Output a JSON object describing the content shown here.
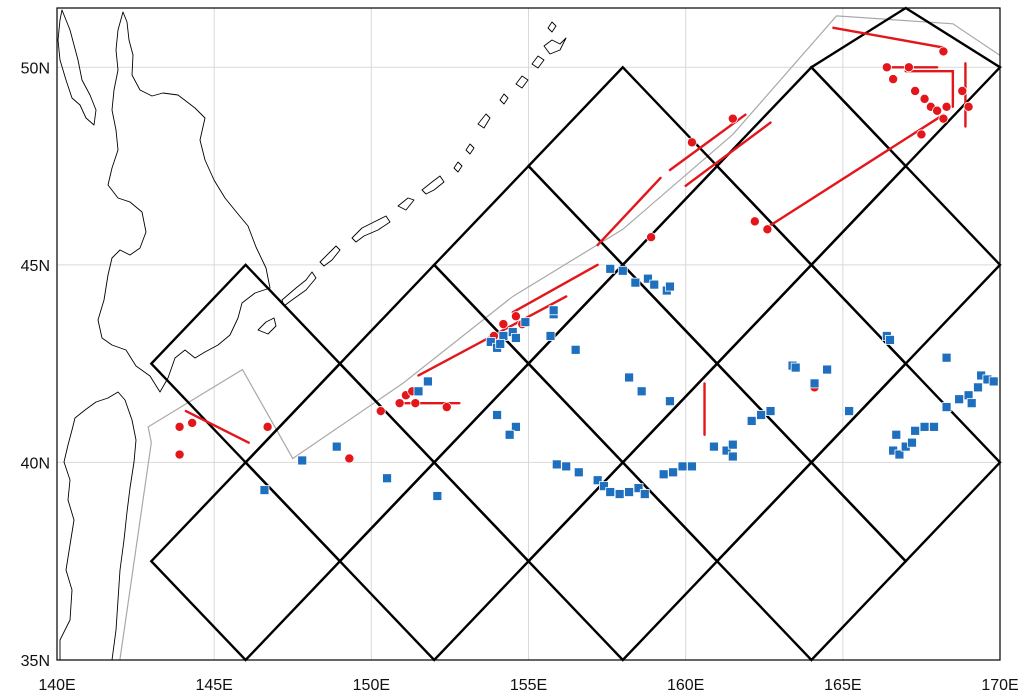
{
  "map": {
    "lon_range": [
      140,
      170
    ],
    "lat_range": [
      35,
      51.5
    ],
    "x_ticks": [
      {
        "value": 140,
        "label": "140E"
      },
      {
        "value": 145,
        "label": "145E"
      },
      {
        "value": 150,
        "label": "150E"
      },
      {
        "value": 155,
        "label": "155E"
      },
      {
        "value": 160,
        "label": "160E"
      },
      {
        "value": 165,
        "label": "165E"
      },
      {
        "value": 170,
        "label": "170E"
      }
    ],
    "y_ticks": [
      {
        "value": 35,
        "label": "35N"
      },
      {
        "value": 40,
        "label": "40N"
      },
      {
        "value": 45,
        "label": "45N"
      },
      {
        "value": 50,
        "label": "50N"
      }
    ],
    "grid": true,
    "colors": {
      "frame": "#000000",
      "gridline": "#d9d9d9",
      "coastline": "#000000",
      "boundary": "#a9a9a9",
      "diamond_grid": "#000000",
      "red_track": "#e3171b",
      "blue_marker": "#1f6fbf"
    },
    "boundary_polygon": [
      [
        142.0,
        35.0
      ],
      [
        143.0,
        40.5
      ],
      [
        142.9,
        40.9
      ],
      [
        145.9,
        42.35
      ],
      [
        147.5,
        40.1
      ],
      [
        151.0,
        42.0
      ],
      [
        154.5,
        44.2
      ],
      [
        158.0,
        45.9
      ],
      [
        161.5,
        48.3
      ],
      [
        164.8,
        51.3
      ],
      [
        168.5,
        51.1
      ],
      [
        170.0,
        50.3
      ]
    ],
    "diamond_centers": [
      [
        146,
        37.5
      ],
      [
        152,
        37.5
      ],
      [
        158,
        37.5
      ],
      [
        164,
        37.5
      ],
      [
        149,
        40
      ],
      [
        155,
        40
      ],
      [
        161,
        40
      ],
      [
        167,
        40
      ],
      [
        146,
        42.5
      ],
      [
        152,
        42.5
      ],
      [
        158,
        42.5
      ],
      [
        164,
        42.5
      ],
      [
        155,
        45
      ],
      [
        161,
        45
      ],
      [
        167,
        45
      ],
      [
        158,
        47.5
      ],
      [
        164,
        47.5
      ],
      [
        167,
        50
      ]
    ],
    "diamond_half_width_deg": 3,
    "diamond_half_height_deg": 2.5,
    "red_tracks": [
      [
        [
          144.1,
          41.3
        ],
        [
          146.1,
          40.5
        ]
      ],
      [
        [
          150.8,
          41.5
        ],
        [
          152.8,
          41.5
        ]
      ],
      [
        [
          151.5,
          42.2
        ],
        [
          156.2,
          44.2
        ]
      ],
      [
        [
          154.5,
          43.8
        ],
        [
          157.2,
          45.0
        ]
      ],
      [
        [
          157.2,
          45.5
        ],
        [
          159.2,
          47.2
        ]
      ],
      [
        [
          159.5,
          47.4
        ],
        [
          161.9,
          48.8
        ]
      ],
      [
        [
          160.0,
          47.0
        ],
        [
          162.7,
          48.6
        ]
      ],
      [
        [
          162.5,
          45.9
        ],
        [
          168.2,
          48.8
        ]
      ],
      [
        [
          160.6,
          42.0
        ],
        [
          160.6,
          40.7
        ]
      ],
      [
        [
          164.7,
          51.0
        ],
        [
          168.2,
          50.5
        ]
      ],
      [
        [
          166.4,
          50.0
        ],
        [
          168.0,
          50.0
        ]
      ],
      [
        [
          167.0,
          49.9
        ],
        [
          168.5,
          49.9
        ],
        [
          168.5,
          49.0
        ]
      ],
      [
        [
          168.9,
          50.1
        ],
        [
          168.9,
          48.5
        ]
      ]
    ],
    "red_points": [
      [
        143.9,
        40.9
      ],
      [
        144.3,
        41.0
      ],
      [
        143.9,
        40.2
      ],
      [
        146.7,
        40.9
      ],
      [
        149.3,
        40.1
      ],
      [
        150.3,
        41.3
      ],
      [
        150.9,
        41.5
      ],
      [
        151.1,
        41.7
      ],
      [
        151.3,
        41.8
      ],
      [
        151.4,
        41.5
      ],
      [
        152.4,
        41.4
      ],
      [
        153.9,
        43.2
      ],
      [
        154.2,
        43.5
      ],
      [
        154.6,
        43.7
      ],
      [
        154.8,
        43.5
      ],
      [
        158.9,
        45.7
      ],
      [
        160.2,
        48.1
      ],
      [
        161.5,
        48.7
      ],
      [
        162.2,
        46.1
      ],
      [
        162.6,
        45.9
      ],
      [
        166.4,
        50.0
      ],
      [
        166.6,
        49.7
      ],
      [
        167.1,
        50.0
      ],
      [
        168.2,
        50.4
      ],
      [
        167.3,
        49.4
      ],
      [
        167.6,
        49.2
      ],
      [
        167.8,
        49.0
      ],
      [
        168.0,
        48.9
      ],
      [
        168.2,
        48.7
      ],
      [
        168.3,
        49.0
      ],
      [
        167.5,
        48.3
      ],
      [
        168.8,
        49.4
      ],
      [
        169.0,
        49.0
      ],
      [
        164.1,
        41.9
      ]
    ],
    "blue_points": [
      [
        147.8,
        40.05
      ],
      [
        146.6,
        39.3
      ],
      [
        148.9,
        40.4
      ],
      [
        150.5,
        39.6
      ],
      [
        152.1,
        39.15
      ],
      [
        151.8,
        42.05
      ],
      [
        151.5,
        41.8
      ],
      [
        153.8,
        43.05
      ],
      [
        154.0,
        42.9
      ],
      [
        154.2,
        43.2
      ],
      [
        154.5,
        43.3
      ],
      [
        154.9,
        43.55
      ],
      [
        154.6,
        43.15
      ],
      [
        154.1,
        43.0
      ],
      [
        155.8,
        43.75
      ],
      [
        155.8,
        43.85
      ],
      [
        155.7,
        43.2
      ],
      [
        156.5,
        42.85
      ],
      [
        157.6,
        44.9
      ],
      [
        158.0,
        44.85
      ],
      [
        158.4,
        44.55
      ],
      [
        158.8,
        44.65
      ],
      [
        159.0,
        44.5
      ],
      [
        159.4,
        44.35
      ],
      [
        159.5,
        44.45
      ],
      [
        158.2,
        42.15
      ],
      [
        158.6,
        41.8
      ],
      [
        159.5,
        41.55
      ],
      [
        154.0,
        41.2
      ],
      [
        154.6,
        40.9
      ],
      [
        154.4,
        40.7
      ],
      [
        155.9,
        39.95
      ],
      [
        156.2,
        39.9
      ],
      [
        156.6,
        39.75
      ],
      [
        157.2,
        39.55
      ],
      [
        157.4,
        39.4
      ],
      [
        157.6,
        39.25
      ],
      [
        157.9,
        39.2
      ],
      [
        158.2,
        39.25
      ],
      [
        158.5,
        39.35
      ],
      [
        158.7,
        39.2
      ],
      [
        159.3,
        39.7
      ],
      [
        159.6,
        39.75
      ],
      [
        159.9,
        39.9
      ],
      [
        160.2,
        39.9
      ],
      [
        160.9,
        40.4
      ],
      [
        161.3,
        40.3
      ],
      [
        161.5,
        40.45
      ],
      [
        161.5,
        40.15
      ],
      [
        162.1,
        41.05
      ],
      [
        162.4,
        41.2
      ],
      [
        162.7,
        41.3
      ],
      [
        163.4,
        42.45
      ],
      [
        163.5,
        42.4
      ],
      [
        164.1,
        42.0
      ],
      [
        164.5,
        42.35
      ],
      [
        165.2,
        41.3
      ],
      [
        166.4,
        43.2
      ],
      [
        166.5,
        43.1
      ],
      [
        166.7,
        40.7
      ],
      [
        166.6,
        40.3
      ],
      [
        166.8,
        40.2
      ],
      [
        167.0,
        40.4
      ],
      [
        167.2,
        40.5
      ],
      [
        167.3,
        40.8
      ],
      [
        167.6,
        40.9
      ],
      [
        167.9,
        40.9
      ],
      [
        168.3,
        42.65
      ],
      [
        168.3,
        41.4
      ],
      [
        168.7,
        41.6
      ],
      [
        169.0,
        41.7
      ],
      [
        169.1,
        41.5
      ],
      [
        169.3,
        41.9
      ],
      [
        169.4,
        42.2
      ],
      [
        169.6,
        42.1
      ],
      [
        169.8,
        42.05
      ]
    ]
  }
}
